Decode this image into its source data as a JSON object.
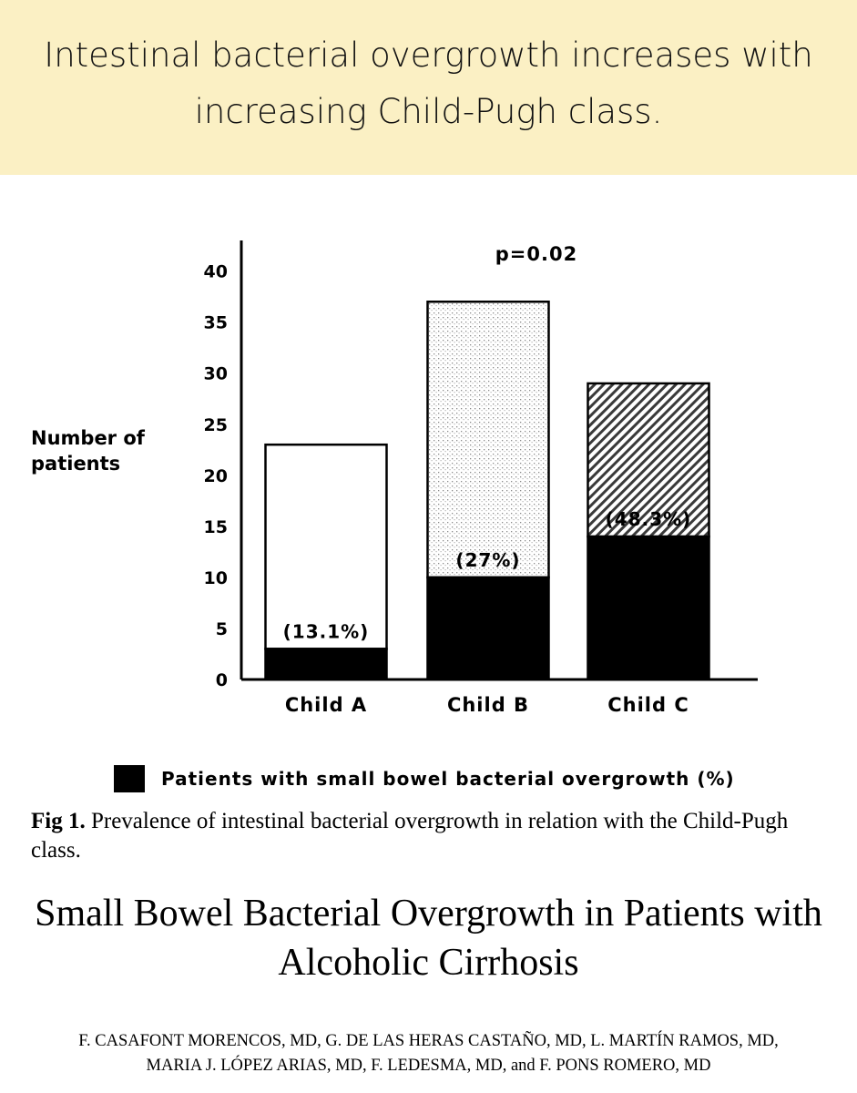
{
  "banner": {
    "text": "Intestinal bacterial overgrowth increases with increasing Child-Pugh class."
  },
  "chart_data": {
    "type": "bar",
    "stacked": true,
    "categories": [
      "Child A",
      "Child B",
      "Child C"
    ],
    "series": [
      {
        "name": "Patients with small bowel bacterial overgrowth (%)",
        "values": [
          3,
          10,
          14
        ],
        "fill": "black"
      },
      {
        "values": [
          20,
          27,
          15
        ]
      }
    ],
    "totals": [
      23,
      37,
      29
    ],
    "fills": [
      "white",
      "dotted",
      "hatched"
    ],
    "data_labels": [
      "(13.1%)",
      "(27%)",
      "(48.3%)"
    ],
    "annotation": "p=0.02",
    "ylabel": "Number of patients",
    "ylim": [
      0,
      43
    ],
    "yticks": [
      "0",
      "5",
      "10",
      "15",
      "20",
      "25",
      "30",
      "35",
      "40"
    ],
    "legend": "bottom",
    "grid": false
  },
  "legend_label": "Patients with small bowel bacterial overgrowth (%)",
  "figure_caption": {
    "label": "Fig 1.",
    "text": " Prevalence of intestinal bacterial overgrowth in relation with the Child-Pugh class."
  },
  "paper": {
    "title": "Small Bowel Bacterial Overgrowth in Patients with Alcoholic Cirrhosis",
    "authors_line1": "F. CASAFONT MORENCOS, MD, G. DE LAS HERAS CASTAÑO, MD, L. MARTÍN RAMOS, MD,",
    "authors_line2": "MARIA J. LÓPEZ ARIAS, MD, F. LEDESMA, MD, and F. PONS ROMERO, MD"
  }
}
